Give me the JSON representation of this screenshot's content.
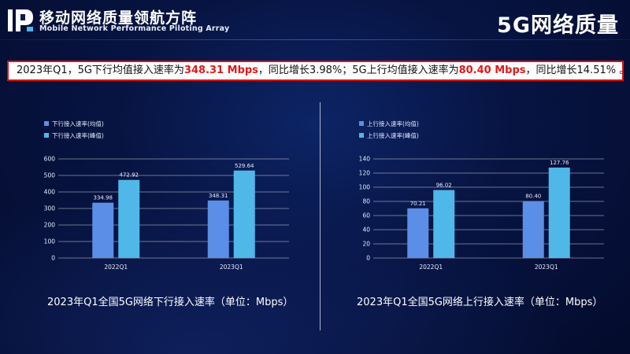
{
  "header": {
    "brand_cn": "移动网络质量领航方阵",
    "brand_en": "Mobile Network Performance Piloting Array",
    "page_title": "5G网络质量"
  },
  "summary": {
    "part1": "2023年Q1，5G下行均值接入速率为",
    "value1": "348.31 Mbps",
    "part2": "，同比增长3.98%；5G上行均值接入速率为",
    "value2": "80.40 Mbps",
    "part3": "，同比增长14.51% 。"
  },
  "colors": {
    "series_avg": "#5b8ee6",
    "series_peak": "#4fb8e8",
    "highlight": "#e01a1a",
    "summary_border": "#d61515"
  },
  "chart_data": [
    {
      "type": "bar",
      "caption": "2023年Q1全国5G网络下行接入速率（单位：Mbps）",
      "categories": [
        "2022Q1",
        "2023Q1"
      ],
      "series": [
        {
          "name": "下行接入速率(均值)",
          "values": [
            334.98,
            348.31
          ],
          "labels": [
            "334.98",
            "348.31"
          ]
        },
        {
          "name": "下行接入速率(峰值)",
          "values": [
            472.92,
            529.64
          ],
          "labels": [
            "472.92",
            "529.64"
          ]
        }
      ],
      "ylim": [
        0,
        600
      ],
      "yticks": [
        0,
        100,
        200,
        300,
        400,
        500,
        600
      ],
      "grid": true,
      "legend": "top-left"
    },
    {
      "type": "bar",
      "caption": "2023年Q1全国5G网络上行接入速率（单位：Mbps）",
      "categories": [
        "2022Q1",
        "2023Q1"
      ],
      "series": [
        {
          "name": "上行接入速率(均值)",
          "values": [
            70.21,
            80.4
          ],
          "labels": [
            "70.21",
            "80.40"
          ]
        },
        {
          "name": "上行接入速率(峰值)",
          "values": [
            96.02,
            127.76
          ],
          "labels": [
            "96.02",
            "127.76"
          ]
        }
      ],
      "ylim": [
        0,
        140
      ],
      "yticks": [
        0,
        20,
        40,
        60,
        80,
        100,
        120,
        140
      ],
      "grid": true,
      "legend": "top-left"
    }
  ]
}
